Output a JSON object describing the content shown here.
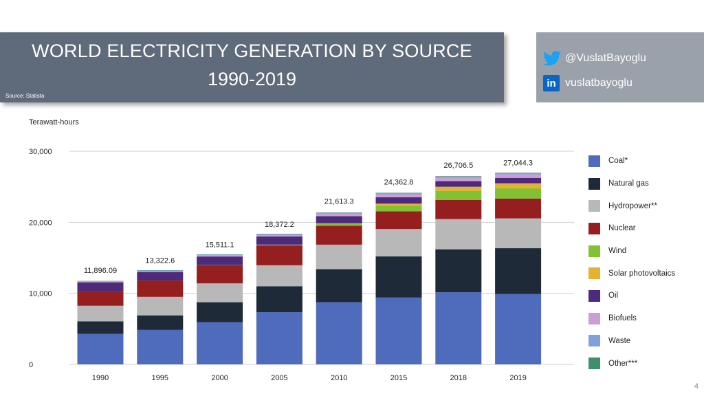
{
  "header": {
    "title_line1": "WORLD ELECTRICITY GENERATION BY SOURCE",
    "title_line2": "1990-2019",
    "source": "Source: Statista"
  },
  "social": {
    "twitter_icon": "twitter-bird-icon",
    "twitter_handle": "@VuslatBayoglu",
    "linkedin_icon": "linkedin-icon",
    "linkedin_icon_text": "in",
    "linkedin_handle": "vuslatbayoglu"
  },
  "page_number": "4",
  "chart_data": {
    "type": "bar",
    "stacked": true,
    "title": "World electricity generation by source 1990-2019",
    "xlabel": "",
    "ylabel": "Terawatt-hours",
    "ylim": [
      0,
      30000
    ],
    "yticks": [
      0,
      10000,
      20000,
      30000
    ],
    "ytick_labels": [
      "0",
      "10,000",
      "20,000",
      "30,000"
    ],
    "grid": true,
    "legend_position": "right",
    "categories": [
      "1990",
      "1995",
      "2000",
      "2005",
      "2010",
      "2015",
      "2018",
      "2019"
    ],
    "totals": [
      11896.09,
      13322.6,
      15511.1,
      18372.2,
      21613.3,
      24362.8,
      26706.5,
      27044.3
    ],
    "total_labels": [
      "11,896.09",
      "13,322.6",
      "15,511.1",
      "18,372.2",
      "21,613.3",
      "24,362.8",
      "26,706.5",
      "27,044.3"
    ],
    "series": [
      {
        "name": "Coal*",
        "color": "#4f6bbb",
        "values": [
          4300,
          4850,
          5950,
          7350,
          8750,
          9400,
          10150,
          9900
        ]
      },
      {
        "name": "Natural gas",
        "color": "#1f2a38",
        "values": [
          1750,
          2050,
          2800,
          3650,
          4650,
          5800,
          6050,
          6450
        ]
      },
      {
        "name": "Hydropower**",
        "color": "#b8b8b8",
        "values": [
          2200,
          2600,
          2650,
          2950,
          3450,
          3850,
          4250,
          4200
        ]
      },
      {
        "name": "Nuclear",
        "color": "#951f1f",
        "values": [
          2000,
          2300,
          2550,
          2800,
          2650,
          2500,
          2700,
          2800
        ]
      },
      {
        "name": "Wind",
        "color": "#82c034",
        "values": [
          4,
          8,
          30,
          100,
          340,
          830,
          1270,
          1420
        ]
      },
      {
        "name": "Solar photovoltaics",
        "color": "#e3b233",
        "values": [
          0,
          0,
          1,
          4,
          32,
          250,
          580,
          720
        ]
      },
      {
        "name": "Oil",
        "color": "#4d2a7a",
        "values": [
          1300,
          1200,
          1200,
          1150,
          1000,
          900,
          800,
          760
        ]
      },
      {
        "name": "Biofuels",
        "color": "#cc9ed6",
        "values": [
          120,
          150,
          190,
          240,
          330,
          420,
          470,
          500
        ]
      },
      {
        "name": "Waste",
        "color": "#82a0de",
        "values": [
          50,
          60,
          70,
          80,
          110,
          120,
          130,
          130
        ]
      },
      {
        "name": "Other***",
        "color": "#3f8f6e",
        "values": [
          35,
          40,
          50,
          60,
          70,
          80,
          90,
          90
        ]
      }
    ]
  }
}
